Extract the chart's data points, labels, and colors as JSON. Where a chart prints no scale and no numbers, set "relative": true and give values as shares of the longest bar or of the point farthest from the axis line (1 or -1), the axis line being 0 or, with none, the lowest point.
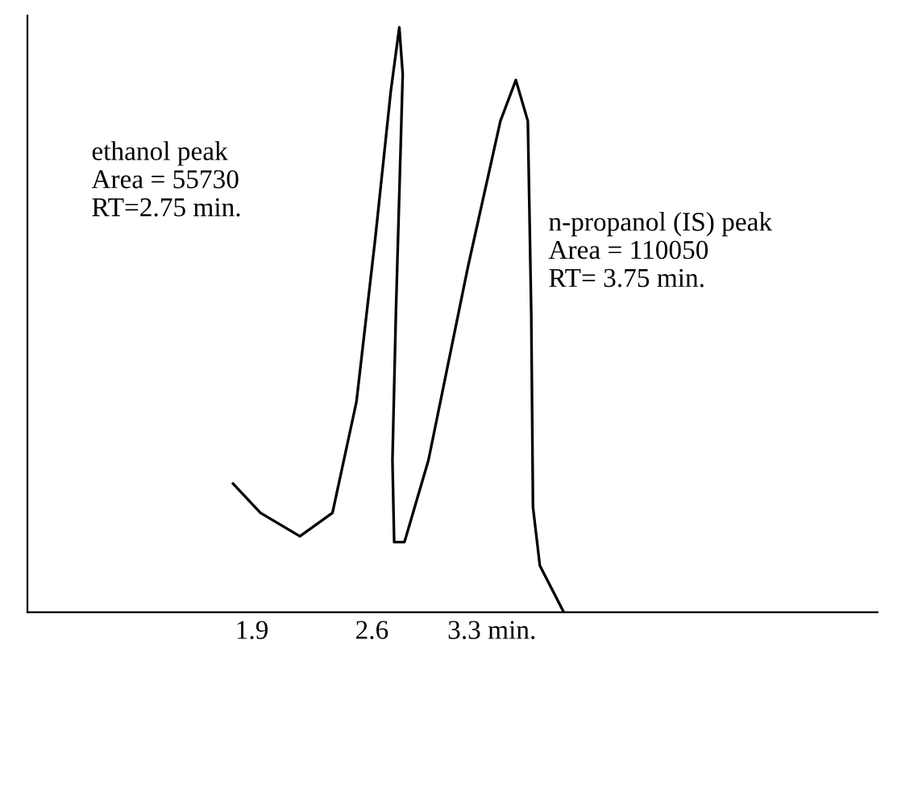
{
  "chart_data": {
    "type": "line",
    "relative": true,
    "series": [
      {
        "color": "#000000",
        "x": [
          1.79,
          1.95,
          2.18,
          2.37,
          2.51,
          2.62,
          2.71,
          2.76,
          2.78,
          2.74,
          2.72,
          2.73,
          2.79,
          2.93,
          3.16,
          3.35,
          3.44,
          3.51,
          3.53,
          3.54,
          3.58,
          3.72
        ],
        "values": [
          0.22,
          0.17,
          0.13,
          0.17,
          0.36,
          0.64,
          0.89,
          1.0,
          0.92,
          0.51,
          0.26,
          0.12,
          0.12,
          0.26,
          0.59,
          0.84,
          0.91,
          0.84,
          0.51,
          0.18,
          0.08,
          0.0
        ]
      }
    ],
    "xlim": [
      0.59,
      5.55
    ],
    "xticks": [
      1.9,
      2.6,
      {
        "value": 3.3,
        "label": "3.3 min."
      }
    ],
    "annotations": [
      "ethanol peak\nArea = 55730\nRT=2.75 min.",
      "n-propanol (IS) peak\nArea = 110050\nRT= 3.75 min."
    ],
    "grid": false,
    "legend": false,
    "marker": "none",
    "line_style": "solid"
  }
}
